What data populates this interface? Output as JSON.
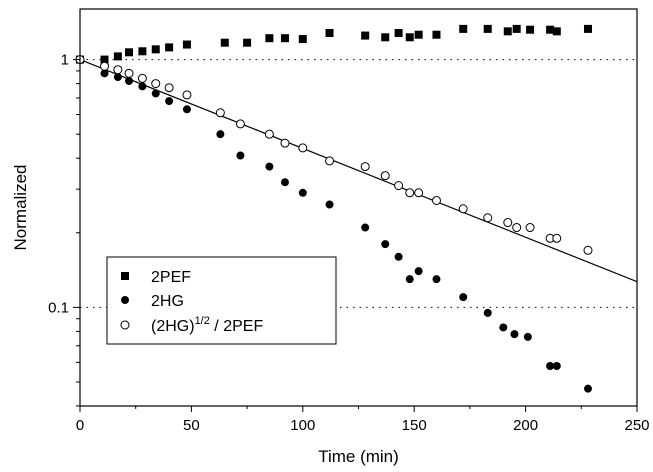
{
  "chart_data": {
    "type": "scatter",
    "xlabel": "Time (min)",
    "ylabel": "Normalized",
    "xlim": [
      0,
      250
    ],
    "ylim": [
      0.04,
      1.6
    ],
    "y_scale": "log",
    "x_ticks": [
      0,
      50,
      100,
      150,
      200,
      250
    ],
    "y_ticks": [
      {
        "value": 0.1,
        "label": "0.1"
      },
      {
        "value": 1,
        "label": "1"
      }
    ],
    "reference_lines": [
      0.1,
      1
    ],
    "legend_position": "bottom-left",
    "series": [
      {
        "name": "2PEF",
        "marker": "filled-square",
        "points": [
          [
            0,
            1.0
          ],
          [
            11,
            1.0
          ],
          [
            17,
            1.03
          ],
          [
            22,
            1.07
          ],
          [
            28,
            1.08
          ],
          [
            34,
            1.1
          ],
          [
            40,
            1.12
          ],
          [
            48,
            1.15
          ],
          [
            65,
            1.17
          ],
          [
            75,
            1.17
          ],
          [
            85,
            1.22
          ],
          [
            92,
            1.22
          ],
          [
            100,
            1.21
          ],
          [
            112,
            1.28
          ],
          [
            128,
            1.25
          ],
          [
            137,
            1.23
          ],
          [
            143,
            1.28
          ],
          [
            148,
            1.23
          ],
          [
            152,
            1.26
          ],
          [
            160,
            1.26
          ],
          [
            172,
            1.33
          ],
          [
            183,
            1.33
          ],
          [
            192,
            1.3
          ],
          [
            196,
            1.33
          ],
          [
            202,
            1.32
          ],
          [
            211,
            1.32
          ],
          [
            214,
            1.3
          ],
          [
            228,
            1.33
          ]
        ]
      },
      {
        "name": "2HG",
        "marker": "filled-circle",
        "points": [
          [
            0,
            1.0
          ],
          [
            11,
            0.88
          ],
          [
            17,
            0.85
          ],
          [
            22,
            0.82
          ],
          [
            28,
            0.78
          ],
          [
            34,
            0.73
          ],
          [
            40,
            0.68
          ],
          [
            48,
            0.63
          ],
          [
            63,
            0.5
          ],
          [
            72,
            0.41
          ],
          [
            85,
            0.37
          ],
          [
            92,
            0.32
          ],
          [
            100,
            0.29
          ],
          [
            112,
            0.26
          ],
          [
            128,
            0.21
          ],
          [
            137,
            0.18
          ],
          [
            143,
            0.16
          ],
          [
            148,
            0.13
          ],
          [
            152,
            0.14
          ],
          [
            160,
            0.13
          ],
          [
            172,
            0.11
          ],
          [
            183,
            0.095
          ],
          [
            190,
            0.083
          ],
          [
            195,
            0.078
          ],
          [
            201,
            0.076
          ],
          [
            211,
            0.058
          ],
          [
            214,
            0.058
          ],
          [
            228,
            0.047
          ]
        ]
      },
      {
        "name": "(2HG)^1/2 / 2PEF",
        "marker": "open-circle",
        "points": [
          [
            0,
            1.0
          ],
          [
            11,
            0.94
          ],
          [
            17,
            0.91
          ],
          [
            22,
            0.88
          ],
          [
            28,
            0.84
          ],
          [
            34,
            0.8
          ],
          [
            40,
            0.77
          ],
          [
            48,
            0.72
          ],
          [
            63,
            0.61
          ],
          [
            72,
            0.55
          ],
          [
            85,
            0.5
          ],
          [
            92,
            0.46
          ],
          [
            100,
            0.44
          ],
          [
            112,
            0.39
          ],
          [
            128,
            0.37
          ],
          [
            137,
            0.34
          ],
          [
            143,
            0.31
          ],
          [
            148,
            0.29
          ],
          [
            152,
            0.29
          ],
          [
            160,
            0.27
          ],
          [
            172,
            0.25
          ],
          [
            183,
            0.23
          ],
          [
            192,
            0.22
          ],
          [
            196,
            0.21
          ],
          [
            202,
            0.21
          ],
          [
            211,
            0.19
          ],
          [
            214,
            0.19
          ],
          [
            228,
            0.17
          ]
        ]
      }
    ],
    "fit_line": {
      "x": [
        0,
        250
      ],
      "y": [
        1.0,
        0.127
      ]
    }
  },
  "legend": {
    "items": [
      {
        "marker": "filled-square",
        "label": "2PEF"
      },
      {
        "marker": "filled-circle",
        "label": "2HG"
      },
      {
        "marker": "open-circle",
        "label_main": "(2HG)",
        "label_sup": "1/2",
        "label_tail": " / 2PEF"
      }
    ]
  }
}
